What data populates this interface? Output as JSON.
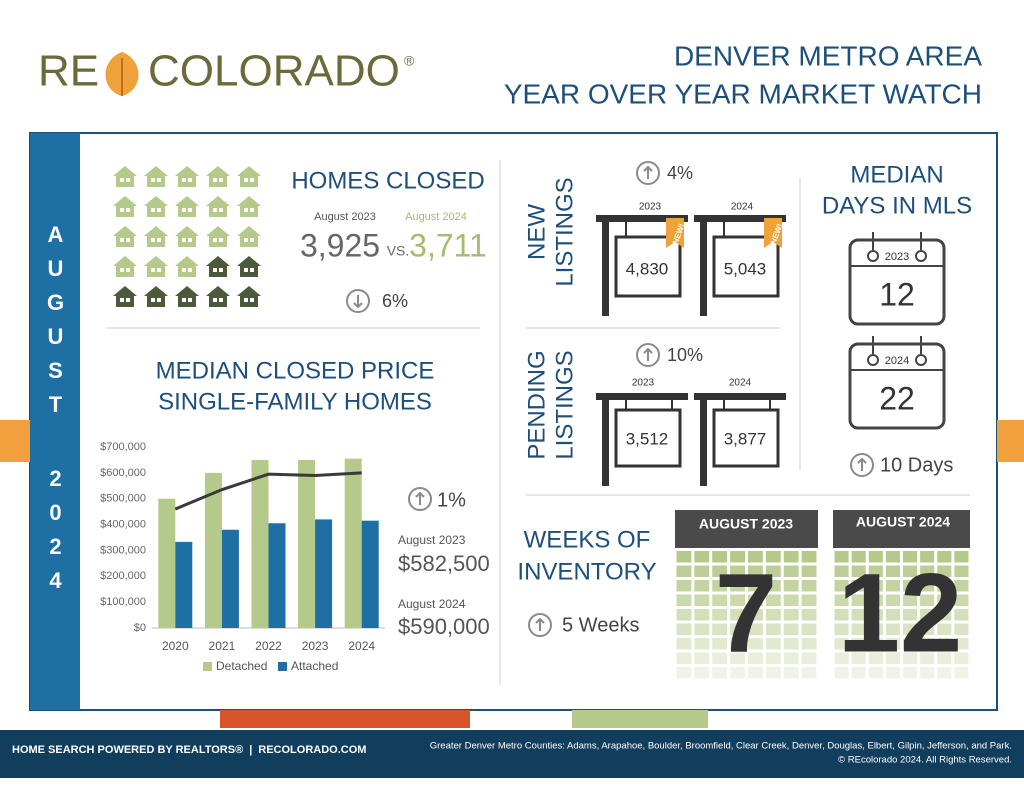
{
  "header": {
    "logo": {
      "left": "RE",
      "right": "COLORADO",
      "mark": "®"
    },
    "title_lines": [
      "DENVER METRO AREA",
      "YEAR OVER YEAR MARKET WATCH"
    ]
  },
  "side": {
    "month": "AUGUST",
    "year": "2024"
  },
  "homes_closed": {
    "title": "HOMES CLOSED",
    "label_2023": "August 2023",
    "label_2024": "August 2024",
    "value_2023": "3,925",
    "vs": "VS.",
    "value_2024": "3,711",
    "change": "6%"
  },
  "median_price": {
    "title_lines": [
      "MEDIAN CLOSED PRICE",
      "SINGLE-FAMILY HOMES"
    ],
    "change": "1%",
    "label_2023": "August 2023",
    "value_2023": "$582,500",
    "label_2024": "August 2024",
    "value_2024": "$590,000"
  },
  "chart_data": {
    "type": "bar",
    "categories": [
      "2020",
      "2021",
      "2022",
      "2023",
      "2024"
    ],
    "series": [
      {
        "name": "Detached",
        "color": "#b5c98a",
        "values": [
          500000,
          600000,
          650000,
          650000,
          655000
        ]
      },
      {
        "name": "Attached",
        "color": "#1e6fa3",
        "values": [
          333000,
          380000,
          405000,
          420000,
          415000
        ]
      },
      {
        "type": "line",
        "color": "#3a3a3a",
        "values": [
          460000,
          535000,
          595000,
          590000,
          600000
        ]
      }
    ],
    "ylim": [
      0,
      700000
    ],
    "yticks": [
      {
        "value": 0,
        "label": "$0"
      },
      {
        "value": 100000,
        "label": "$100,000"
      },
      {
        "value": 200000,
        "label": "$200,000"
      },
      {
        "value": 300000,
        "label": "$300,000"
      },
      {
        "value": 400000,
        "label": "$400,000"
      },
      {
        "value": 500000,
        "label": "$500,000"
      },
      {
        "value": 600000,
        "label": "$600,000"
      },
      {
        "value": 700000,
        "label": "$700,000"
      }
    ],
    "grid": false,
    "legend": "bottom"
  },
  "new_listings": {
    "title_lines": [
      "NEW",
      "LISTINGS"
    ],
    "change": "4%",
    "year_2023": "2023",
    "year_2024": "2024",
    "value_2023": "4,830",
    "value_2024": "5,043",
    "badge": "NEW!"
  },
  "pending_listings": {
    "title_lines": [
      "PENDING",
      "LISTINGS"
    ],
    "change": "10%",
    "year_2023": "2023",
    "year_2024": "2024",
    "value_2023": "3,512",
    "value_2024": "3,877"
  },
  "days_in_mls": {
    "title_lines": [
      "MEDIAN",
      "DAYS IN MLS"
    ],
    "year_2023": "2023",
    "value_2023": "12",
    "year_2024": "2024",
    "value_2024": "22",
    "change": "10 Days"
  },
  "weeks_inventory": {
    "title_lines": [
      "WEEKS OF",
      "INVENTORY"
    ],
    "change": "5 Weeks",
    "header_2023": "AUGUST 2023",
    "value_2023": "7",
    "header_2024": "AUGUST 2024",
    "value_2024": "12"
  },
  "footer": {
    "left": "HOME SEARCH POWERED BY REALTORS®",
    "left_link": "RECOLORADO.COM",
    "right_lines": [
      "Greater Denver Metro Counties: Adams, Arapahoe, Boulder, Broomfield, Clear Creek, Denver, Douglas, Elbert, Gilpin, Jefferson, and Park.",
      "© REcolorado 2024. All Rights Reserved."
    ]
  }
}
